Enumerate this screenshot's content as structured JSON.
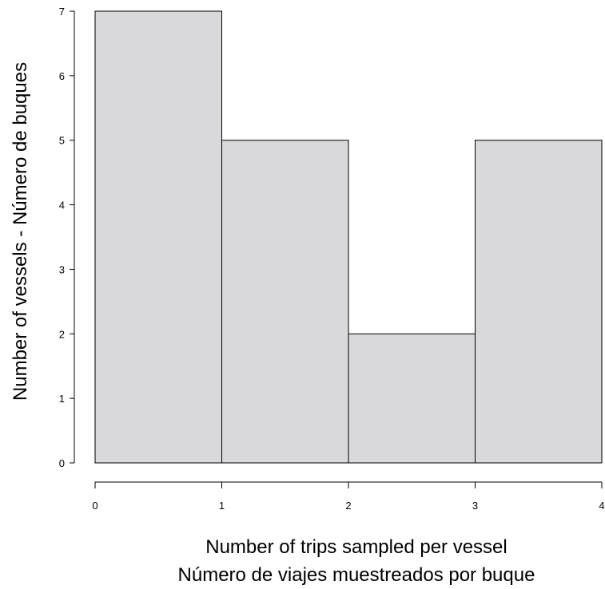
{
  "chart_data": {
    "type": "bar",
    "title": "",
    "xlabel": "Number of trips sampled per vessel",
    "xlabel_2": "Número de viajes muestreados por buque",
    "ylabel": "Number of vessels - Número de buques",
    "bins": [
      {
        "x0": 0,
        "x1": 1,
        "value": 7
      },
      {
        "x0": 1,
        "x1": 2,
        "value": 5
      },
      {
        "x0": 2,
        "x1": 3,
        "value": 2
      },
      {
        "x0": 3,
        "x1": 4,
        "value": 5
      }
    ],
    "xlim": [
      0,
      4
    ],
    "ylim": [
      0,
      7
    ],
    "x_ticks": [
      "0",
      "1",
      "2",
      "3",
      "4"
    ],
    "y_ticks": [
      "0",
      "1",
      "2",
      "3",
      "4",
      "5",
      "6",
      "7"
    ],
    "grid": false,
    "colors": {
      "bar_fill": "#d9d9db",
      "bar_stroke": "#000000",
      "axis": "#000000"
    }
  }
}
